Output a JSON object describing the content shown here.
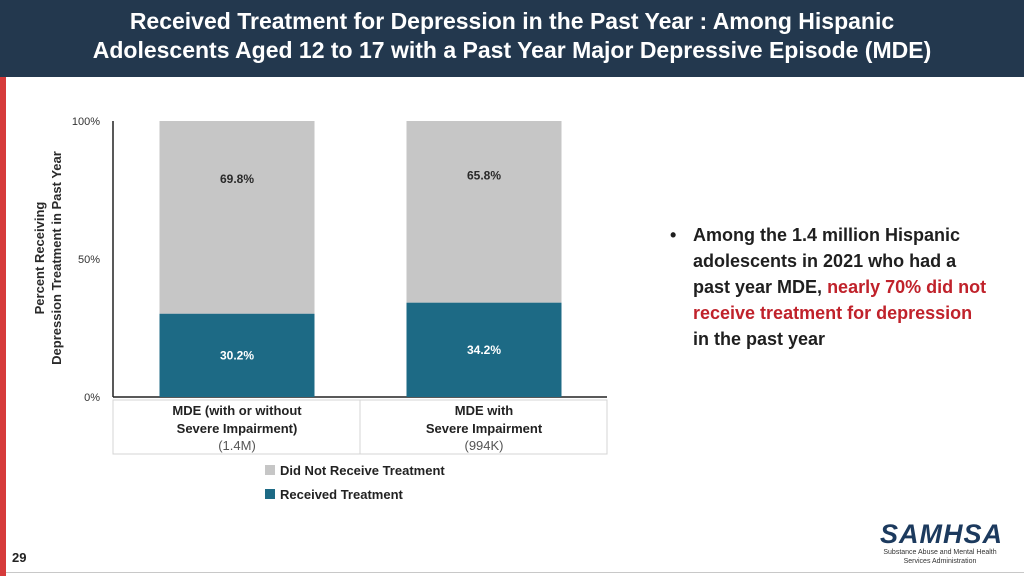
{
  "header": {
    "title_line1": "Received Treatment for Depression in the Past Year : Among Hispanic",
    "title_line2": "Adolescents Aged 12 to 17 with a Past Year Major Depressive Episode (MDE)"
  },
  "colors": {
    "header_bg": "#23384e",
    "accent_red": "#d63b3b",
    "highlight": "#c0222b"
  },
  "chart_data": {
    "type": "bar",
    "stacked": true,
    "ylabel_line1": "Percent Receiving",
    "ylabel_line2": "Depression Treatment in Past Year",
    "ylim": [
      0,
      100
    ],
    "yticks": [
      "0%",
      "50%",
      "100%"
    ],
    "categories": [
      {
        "line1": "MDE (with or without",
        "line2": "Severe Impairment)",
        "line3": "(1.4M)"
      },
      {
        "line1": "MDE with",
        "line2": "Severe Impairment",
        "line3": "(994K)"
      }
    ],
    "series": [
      {
        "name": "Received Treatment",
        "color": "#1d6a85",
        "values": [
          30.2,
          34.2
        ],
        "labels": [
          "30.2%",
          "34.2%"
        ]
      },
      {
        "name": "Did Not Receive Treatment",
        "color": "#c6c6c6",
        "values": [
          69.8,
          65.8
        ],
        "labels": [
          "69.8%",
          "65.8%"
        ]
      }
    ],
    "legend": [
      {
        "name": "Did Not Receive Treatment",
        "color": "#c6c6c6"
      },
      {
        "name": "Received Treatment",
        "color": "#1d6a85"
      }
    ]
  },
  "bullet": {
    "marker": "•",
    "text_before": "Among the 1.4 million Hispanic adolescents in 2021 who had a past year MDE, ",
    "text_highlight": "nearly 70% did not receive treatment for depression",
    "text_after": " in the past year"
  },
  "logo": {
    "name": "SAMHSA",
    "subtitle_line1": "Substance Abuse and Mental Health",
    "subtitle_line2": "Services Administration"
  },
  "page_number": "29"
}
